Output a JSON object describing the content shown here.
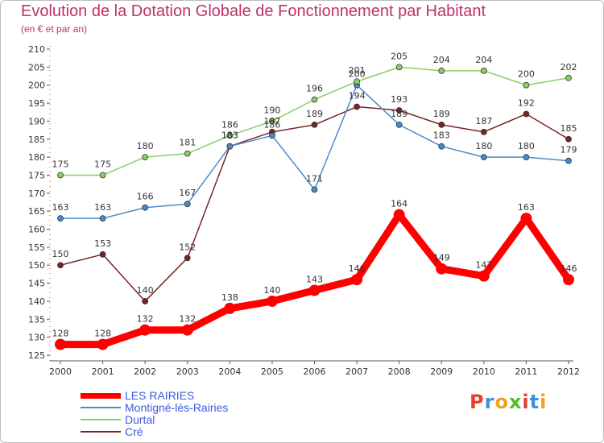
{
  "title": "Evolution de la Dotation Globale de Fonctionnement par Habitant",
  "subtitle": "(en € et par an)",
  "logo": {
    "text": "Proxiti",
    "letters": [
      {
        "ch": "P",
        "color": "#e8402c"
      },
      {
        "ch": "r",
        "color": "#3d8fe0"
      },
      {
        "ch": "o",
        "color": "#f0a020"
      },
      {
        "ch": "x",
        "color": "#5cb82c"
      },
      {
        "ch": "i",
        "color": "#e8402c"
      },
      {
        "ch": "t",
        "color": "#3d8fe0"
      },
      {
        "ch": "i",
        "color": "#f0a020"
      }
    ]
  },
  "chart_data": {
    "type": "line",
    "title": "Evolution de la Dotation Globale de Fonctionnement par Habitant",
    "subtitle": "(en € et par an)",
    "xlabel": "",
    "ylabel": "",
    "x": [
      "2000",
      "2001",
      "2002",
      "2003",
      "2004",
      "2005",
      "2006",
      "2007",
      "2008",
      "2009",
      "2010",
      "2011",
      "2012"
    ],
    "ylim": [
      125,
      210
    ],
    "yticks": [
      125,
      130,
      135,
      140,
      145,
      150,
      155,
      160,
      165,
      170,
      175,
      180,
      185,
      190,
      195,
      200,
      205,
      210
    ],
    "grid": false,
    "legend_position": "bottom-left",
    "series": [
      {
        "name": "LES RAIRIES",
        "color": "#ff0000",
        "values": [
          128,
          128,
          132,
          132,
          138,
          140,
          143,
          146,
          164,
          149,
          147,
          163,
          146
        ]
      },
      {
        "name": "Montigné-lès-Rairies",
        "color": "#4a8ac8",
        "values": [
          163,
          163,
          166,
          167,
          183,
          186,
          171,
          200,
          189,
          183,
          180,
          180,
          179
        ]
      },
      {
        "name": "Durtal",
        "color": "#88d060",
        "values": [
          175,
          175,
          180,
          181,
          186,
          190,
          196,
          201,
          205,
          204,
          204,
          200,
          202
        ]
      },
      {
        "name": "Cré",
        "color": "#7a2424",
        "values": [
          150,
          153,
          140,
          152,
          183,
          187,
          189,
          194,
          193,
          189,
          187,
          192,
          185
        ]
      }
    ]
  }
}
